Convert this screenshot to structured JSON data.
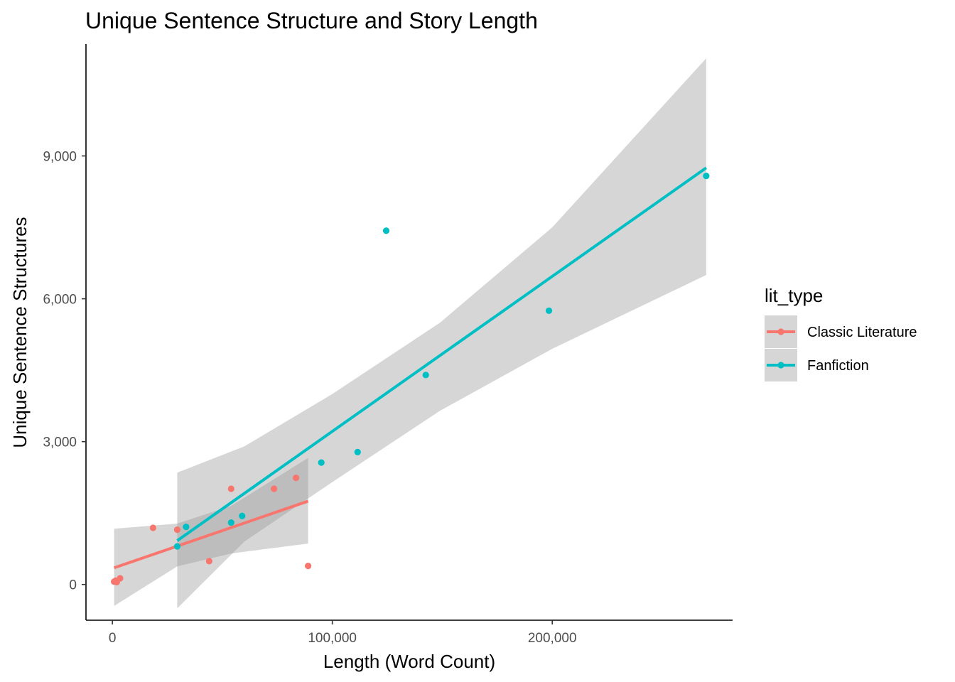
{
  "chart_data": {
    "type": "scatter",
    "title": "Unique Sentence Structure and Story Length",
    "xlabel": "Length (Word Count)",
    "ylabel": "Unique Sentence Structures",
    "xlim": [
      -12000,
      282000
    ],
    "ylim": [
      -750,
      11350
    ],
    "x_ticks": [
      0,
      100000,
      200000
    ],
    "x_tick_labels": [
      "0",
      "100,000",
      "200,000"
    ],
    "y_ticks": [
      0,
      3000,
      6000,
      9000
    ],
    "y_tick_labels": [
      "0",
      "3,000",
      "6,000",
      "9,000"
    ],
    "grid": false,
    "legend": {
      "title": "lit_type",
      "position": "right"
    },
    "series": [
      {
        "name": "Classic Literature",
        "color": "#F8766D",
        "points": [
          {
            "x": 800,
            "y": 60
          },
          {
            "x": 1500,
            "y": 80
          },
          {
            "x": 2000,
            "y": 50
          },
          {
            "x": 3500,
            "y": 130
          },
          {
            "x": 18500,
            "y": 1190
          },
          {
            "x": 29500,
            "y": 1150
          },
          {
            "x": 44000,
            "y": 490
          },
          {
            "x": 54000,
            "y": 2010
          },
          {
            "x": 73500,
            "y": 2010
          },
          {
            "x": 83500,
            "y": 2240
          },
          {
            "x": 89000,
            "y": 390
          }
        ],
        "fit": {
          "x": [
            800,
            89000
          ],
          "y": [
            350,
            1750
          ]
        },
        "band": {
          "x": [
            800,
            29500,
            54000,
            89000
          ],
          "lower": [
            -450,
            380,
            650,
            860
          ],
          "upper": [
            1170,
            1280,
            1650,
            2660
          ]
        }
      },
      {
        "name": "Fanfiction",
        "color": "#00BFC4",
        "points": [
          {
            "x": 29500,
            "y": 800
          },
          {
            "x": 33500,
            "y": 1210
          },
          {
            "x": 54000,
            "y": 1300
          },
          {
            "x": 59000,
            "y": 1440
          },
          {
            "x": 95000,
            "y": 2560
          },
          {
            "x": 111500,
            "y": 2780
          },
          {
            "x": 124500,
            "y": 7430
          },
          {
            "x": 142500,
            "y": 4400
          },
          {
            "x": 198500,
            "y": 5750
          },
          {
            "x": 270000,
            "y": 8580
          }
        ],
        "fit": {
          "x": [
            29500,
            270000
          ],
          "y": [
            920,
            8750
          ]
        },
        "band": {
          "x": [
            29500,
            60000,
            100000,
            149000,
            200000,
            270000
          ],
          "lower": [
            -500,
            900,
            2150,
            3650,
            4950,
            6500
          ],
          "upper": [
            2350,
            2900,
            4000,
            5500,
            7500,
            11050
          ]
        }
      }
    ]
  }
}
